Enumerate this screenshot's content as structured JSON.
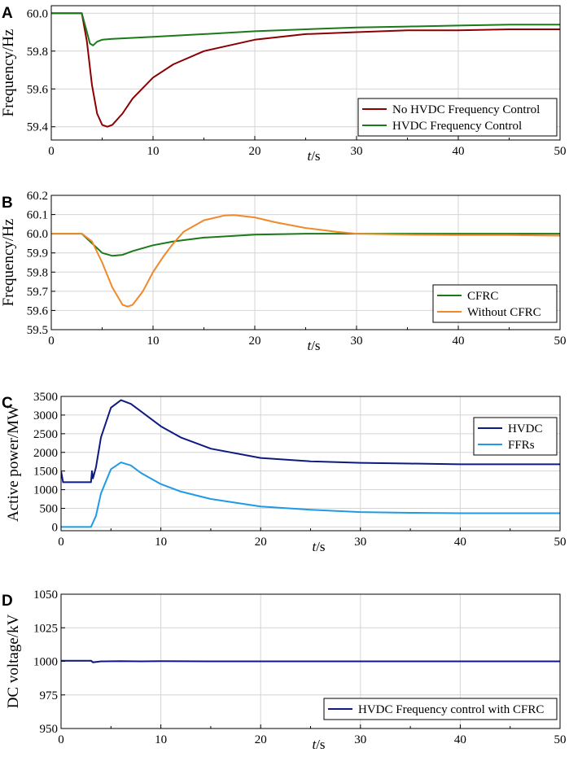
{
  "chart_data": [
    {
      "panel": "A",
      "type": "line",
      "ylabel": "Frequency/Hz",
      "xlabel_italic": "t",
      "xlabel_unit": "/s",
      "xlim": [
        0,
        50
      ],
      "ylim": [
        59.33,
        60.04
      ],
      "xticks": [
        "0",
        "10",
        "20",
        "30",
        "40",
        "50"
      ],
      "yticks": [
        "59.4",
        "59.6",
        "59.8",
        "60.0"
      ],
      "ytick_values": [
        59.4,
        59.6,
        59.8,
        60.0
      ],
      "series": [
        {
          "name": "No HVDC Frequency Control",
          "color": "#8b0000",
          "x": [
            0,
            3,
            3.5,
            4,
            4.5,
            5,
            5.5,
            6,
            7,
            8,
            10,
            12,
            15,
            20,
            25,
            30,
            35,
            40,
            45,
            50
          ],
          "y": [
            60.0,
            60.0,
            59.85,
            59.62,
            59.47,
            59.41,
            59.4,
            59.41,
            59.47,
            59.55,
            59.66,
            59.73,
            59.8,
            59.86,
            59.89,
            59.9,
            59.91,
            59.91,
            59.915,
            59.915
          ]
        },
        {
          "name": "HVDC Frequency Control",
          "color": "#1a7a1a",
          "x": [
            0,
            3,
            3.5,
            3.8,
            4.1,
            4.5,
            5,
            6,
            8,
            10,
            15,
            20,
            25,
            30,
            35,
            40,
            45,
            50
          ],
          "y": [
            60.0,
            60.0,
            59.9,
            59.84,
            59.83,
            59.85,
            59.86,
            59.865,
            59.87,
            59.875,
            59.89,
            59.905,
            59.915,
            59.925,
            59.93,
            59.935,
            59.94,
            59.94
          ]
        }
      ]
    },
    {
      "panel": "B",
      "type": "line",
      "ylabel": "Frequency/Hz",
      "xlabel_italic": "t",
      "xlabel_unit": "/s",
      "xlim": [
        0,
        50
      ],
      "ylim": [
        59.5,
        60.2
      ],
      "xticks": [
        "0",
        "10",
        "20",
        "30",
        "40",
        "50"
      ],
      "yticks": [
        "59.5",
        "59.6",
        "59.7",
        "59.8",
        "59.9",
        "60.0",
        "60.1",
        "60.2"
      ],
      "ytick_values": [
        59.5,
        59.6,
        59.7,
        59.8,
        59.9,
        60.0,
        60.1,
        60.2
      ],
      "series": [
        {
          "name": "CFRC",
          "color": "#1a7a1a",
          "x": [
            0,
            3,
            4,
            5,
            6,
            7,
            8,
            10,
            12,
            15,
            20,
            25,
            30,
            35,
            40,
            45,
            50
          ],
          "y": [
            60.0,
            60.0,
            59.95,
            59.9,
            59.885,
            59.89,
            59.91,
            59.94,
            59.96,
            59.98,
            59.995,
            60.0,
            60.0,
            60.0,
            60.0,
            60.0,
            60.0
          ]
        },
        {
          "name": "Without CFRC",
          "color": "#f0892a",
          "x": [
            0,
            3,
            4,
            5,
            6,
            7,
            7.5,
            8,
            9,
            10,
            11,
            12,
            13,
            15,
            17,
            18,
            20,
            22,
            25,
            28,
            30,
            35,
            40,
            45,
            50
          ],
          "y": [
            60.0,
            60.0,
            59.96,
            59.85,
            59.72,
            59.63,
            59.62,
            59.63,
            59.7,
            59.8,
            59.88,
            59.95,
            60.01,
            60.07,
            60.095,
            60.097,
            60.085,
            60.06,
            60.03,
            60.01,
            60.0,
            59.995,
            59.993,
            59.993,
            59.99
          ]
        }
      ]
    },
    {
      "panel": "C",
      "type": "line",
      "ylabel": "Active power/MW",
      "xlabel_italic": "t",
      "xlabel_unit": "/s",
      "xlim": [
        0,
        50
      ],
      "ylim": [
        -100,
        3500
      ],
      "xticks": [
        "0",
        "10",
        "20",
        "30",
        "40",
        "50"
      ],
      "yticks": [
        "0",
        "500",
        "1000",
        "1500",
        "2000",
        "2500",
        "3000",
        "3500"
      ],
      "ytick_values": [
        0,
        500,
        1000,
        1500,
        2000,
        2500,
        3000,
        3500
      ],
      "series": [
        {
          "name": "HVDC",
          "color": "#0d1a80",
          "x": [
            0,
            0.2,
            0.3,
            3,
            3.1,
            3.2,
            3.5,
            4,
            5,
            6,
            7,
            8,
            10,
            12,
            15,
            20,
            25,
            30,
            35,
            40,
            45,
            50
          ],
          "y": [
            1500,
            1200,
            1200,
            1200,
            1500,
            1300,
            1600,
            2400,
            3200,
            3400,
            3300,
            3100,
            2700,
            2400,
            2100,
            1850,
            1760,
            1720,
            1700,
            1680,
            1680,
            1680
          ]
        },
        {
          "name": "FFRs",
          "color": "#1e9ae6",
          "x": [
            0,
            3,
            3.5,
            4,
            5,
            6,
            7,
            8,
            10,
            12,
            15,
            20,
            25,
            30,
            35,
            40,
            45,
            50
          ],
          "y": [
            0,
            0,
            300,
            900,
            1550,
            1730,
            1650,
            1450,
            1150,
            950,
            750,
            550,
            460,
            400,
            380,
            370,
            370,
            370
          ]
        }
      ]
    },
    {
      "panel": "D",
      "type": "line",
      "ylabel": "DC voltage/kV",
      "xlabel_italic": "t",
      "xlabel_unit": "/s",
      "xlim": [
        0,
        50
      ],
      "ylim": [
        950,
        1050
      ],
      "xticks": [
        "0",
        "10",
        "20",
        "30",
        "40",
        "50"
      ],
      "yticks": [
        "950",
        "975",
        "1000",
        "1025",
        "1050"
      ],
      "ytick_values": [
        950,
        975,
        1000,
        1025,
        1050
      ],
      "series": [
        {
          "name": "HVDC Frequency control with CFRC",
          "color": "#0d1a80",
          "x": [
            0,
            3,
            3.2,
            4,
            6,
            8,
            10,
            15,
            20,
            30,
            40,
            50
          ],
          "y": [
            1000.5,
            1000.5,
            999.3,
            1000.0,
            1000.2,
            1000.0,
            1000.1,
            1000.0,
            1000.0,
            1000.0,
            1000.0,
            1000.0
          ]
        }
      ]
    }
  ]
}
